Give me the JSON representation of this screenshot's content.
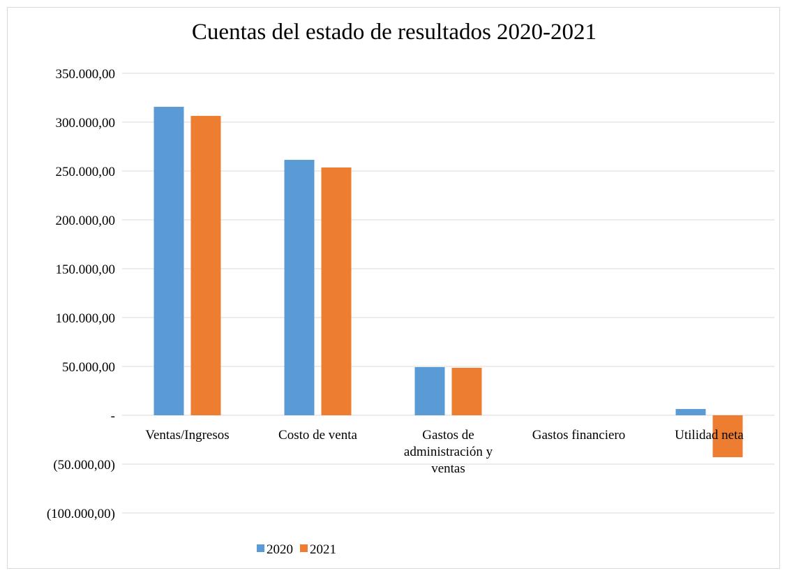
{
  "chart_data": {
    "type": "bar",
    "title": "Cuentas del estado de resultados 2020-2021",
    "categories": [
      "Ventas/Ingresos",
      "Costo de venta",
      "Gastos de administración y ventas",
      "Gastos financiero",
      "Utilidad neta"
    ],
    "series": [
      {
        "name": "2020",
        "color": "#5b9bd5",
        "values": [
          315700,
          261400,
          49300,
          0,
          6400
        ]
      },
      {
        "name": "2021",
        "color": "#ed7d31",
        "values": [
          306400,
          253600,
          48600,
          0,
          -42900
        ]
      }
    ],
    "ylim": [
      -100000,
      350000
    ],
    "yticks": [
      {
        "value": -100000,
        "label": "(100.000,00)"
      },
      {
        "value": -50000,
        "label": "(50.000,00)"
      },
      {
        "value": 0,
        "label": "-"
      },
      {
        "value": 50000,
        "label": "50.000,00"
      },
      {
        "value": 100000,
        "label": "100.000,00"
      },
      {
        "value": 150000,
        "label": "150.000,00"
      },
      {
        "value": 200000,
        "label": "200.000,00"
      },
      {
        "value": 250000,
        "label": "250.000,00"
      },
      {
        "value": 300000,
        "label": "300.000,00"
      },
      {
        "value": 350000,
        "label": "350.000,00"
      }
    ],
    "grid": true,
    "legend": "bottom"
  }
}
